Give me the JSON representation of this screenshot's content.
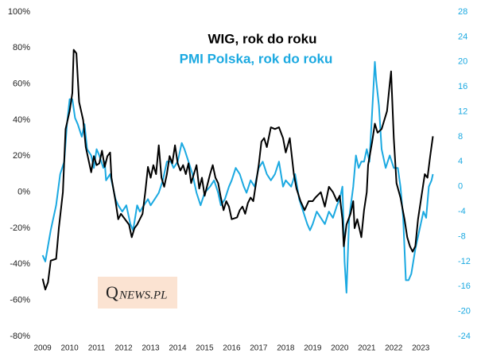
{
  "chart_data": {
    "type": "line",
    "logo_initial": "Q",
    "logo_rest": "NEWS.PL",
    "xlim": [
      2008.6,
      2024.2
    ],
    "xticks": [
      2009,
      2010,
      2011,
      2012,
      2013,
      2014,
      2015,
      2016,
      2017,
      2018,
      2019,
      2020,
      2021,
      2022,
      2023
    ],
    "ylim": [
      -80,
      100
    ],
    "yticks": [
      {
        "value": -80,
        "label": "-80%"
      },
      {
        "value": -60,
        "label": "-60%"
      },
      {
        "value": -40,
        "label": "-40%"
      },
      {
        "value": -20,
        "label": "-20%"
      },
      {
        "value": 0,
        "label": "0%"
      },
      {
        "value": 20,
        "label": "20%"
      },
      {
        "value": 40,
        "label": "40%"
      },
      {
        "value": 60,
        "label": "60%"
      },
      {
        "value": 80,
        "label": "80%"
      },
      {
        "value": 100,
        "label": "100%"
      }
    ],
    "y2lim": [
      -24,
      28
    ],
    "y2ticks": [
      -24,
      -20,
      -16,
      -12,
      -8,
      -4,
      0,
      4,
      8,
      12,
      16,
      20,
      24,
      28
    ],
    "series": [
      {
        "name": "WIG, rok do roku",
        "color": "#000000",
        "x": [
          2009.0,
          2009.1,
          2009.2,
          2009.3,
          2009.5,
          2009.6,
          2009.75,
          2009.85,
          2010.0,
          2010.1,
          2010.15,
          2010.25,
          2010.35,
          2010.5,
          2010.6,
          2010.7,
          2010.8,
          2010.9,
          2011.0,
          2011.1,
          2011.2,
          2011.3,
          2011.4,
          2011.5,
          2011.55,
          2011.7,
          2011.8,
          2011.9,
          2012.0,
          2012.2,
          2012.3,
          2012.4,
          2012.5,
          2012.6,
          2012.7,
          2012.8,
          2012.9,
          2013.0,
          2013.1,
          2013.2,
          2013.3,
          2013.4,
          2013.5,
          2013.6,
          2013.7,
          2013.8,
          2013.9,
          2014.0,
          2014.1,
          2014.2,
          2014.3,
          2014.4,
          2014.5,
          2014.6,
          2014.7,
          2014.8,
          2014.9,
          2015.0,
          2015.2,
          2015.3,
          2015.4,
          2015.5,
          2015.6,
          2015.7,
          2015.8,
          2015.9,
          2016.0,
          2016.2,
          2016.3,
          2016.4,
          2016.5,
          2016.6,
          2016.7,
          2016.8,
          2016.9,
          2017.0,
          2017.1,
          2017.2,
          2017.3,
          2017.45,
          2017.6,
          2017.75,
          2017.9,
          2018.0,
          2018.15,
          2018.3,
          2018.4,
          2018.55,
          2018.7,
          2018.85,
          2019.0,
          2019.1,
          2019.3,
          2019.45,
          2019.6,
          2019.75,
          2019.9,
          2020.0,
          2020.1,
          2020.15,
          2020.25,
          2020.4,
          2020.5,
          2020.55,
          2020.65,
          2020.8,
          2020.9,
          2021.0,
          2021.05,
          2021.2,
          2021.3,
          2021.4,
          2021.55,
          2021.75,
          2021.85,
          2021.9,
          2022.0,
          2022.1,
          2022.25,
          2022.4,
          2022.5,
          2022.6,
          2022.7,
          2022.8,
          2022.9,
          2023.0,
          2023.1,
          2023.15,
          2023.25,
          2023.35,
          2023.45
        ],
        "values": [
          -48,
          -54,
          -50,
          -38,
          -37,
          -20,
          0,
          35,
          45,
          55,
          79,
          77,
          50,
          40,
          25,
          18,
          11,
          20,
          15,
          16,
          23,
          14,
          20,
          22,
          8,
          -5,
          -15,
          -12,
          -14,
          -18,
          -25,
          -20,
          -18,
          -15,
          -12,
          0,
          14,
          8,
          15,
          10,
          26,
          8,
          3,
          10,
          20,
          16,
          26,
          16,
          12,
          15,
          10,
          16,
          5,
          10,
          15,
          2,
          8,
          -2,
          10,
          15,
          8,
          5,
          -3,
          -10,
          -5,
          -8,
          -15,
          -14,
          -10,
          -8,
          -12,
          -6,
          -3,
          -5,
          5,
          15,
          28,
          30,
          25,
          36,
          35,
          36,
          30,
          22,
          30,
          10,
          2,
          -5,
          -10,
          -5,
          -5,
          -3,
          0,
          -8,
          3,
          0,
          -5,
          -2,
          -15,
          -30,
          -18,
          -12,
          -5,
          -20,
          -15,
          -25,
          -10,
          0,
          15,
          28,
          38,
          33,
          35,
          45,
          60,
          67,
          30,
          5,
          -3,
          -15,
          -25,
          -30,
          -33,
          -30,
          -15,
          -5,
          5,
          10,
          8,
          20,
          31
        ]
      },
      {
        "name": "PMI Polska, rok do roku",
        "color": "#1ba9e1",
        "axis": "y2",
        "x": [
          2009.0,
          2009.1,
          2009.3,
          2009.5,
          2009.65,
          2009.8,
          2009.9,
          2010.0,
          2010.1,
          2010.2,
          2010.3,
          2010.45,
          2010.55,
          2010.65,
          2010.8,
          2010.9,
          2011.0,
          2011.1,
          2011.25,
          2011.3,
          2011.35,
          2011.5,
          2011.6,
          2011.7,
          2011.8,
          2011.95,
          2012.1,
          2012.25,
          2012.35,
          2012.5,
          2012.6,
          2012.75,
          2012.9,
          2013.0,
          2013.15,
          2013.3,
          2013.45,
          2013.6,
          2013.75,
          2013.85,
          2014.0,
          2014.15,
          2014.25,
          2014.4,
          2014.55,
          2014.7,
          2014.85,
          2015.0,
          2015.2,
          2015.35,
          2015.5,
          2015.6,
          2015.75,
          2015.9,
          2016.0,
          2016.15,
          2016.3,
          2016.45,
          2016.55,
          2016.7,
          2016.85,
          2017.0,
          2017.15,
          2017.3,
          2017.45,
          2017.6,
          2017.75,
          2017.9,
          2018.0,
          2018.2,
          2018.35,
          2018.5,
          2018.65,
          2018.8,
          2018.9,
          2019.0,
          2019.15,
          2019.3,
          2019.45,
          2019.6,
          2019.75,
          2019.9,
          2020.0,
          2020.1,
          2020.18,
          2020.25,
          2020.35,
          2020.5,
          2020.6,
          2020.7,
          2020.8,
          2020.9,
          2021.0,
          2021.1,
          2021.2,
          2021.3,
          2021.35,
          2021.45,
          2021.55,
          2021.7,
          2021.85,
          2022.0,
          2022.15,
          2022.25,
          2022.35,
          2022.45,
          2022.55,
          2022.65,
          2022.8,
          2022.9,
          2023.0,
          2023.1,
          2023.2,
          2023.3,
          2023.4,
          2023.45
        ],
        "values": [
          -11,
          -12,
          -7,
          -3,
          2,
          4,
          10,
          14,
          14,
          11,
          10,
          8,
          10,
          6,
          5,
          3,
          6,
          5,
          3,
          4,
          1,
          2,
          0,
          -2,
          -3,
          -4,
          -3,
          -6,
          -7,
          -3,
          -4,
          -3,
          -2,
          -3,
          -2,
          -1,
          1,
          4,
          4,
          3,
          4,
          7,
          6,
          4,
          2,
          -1,
          -3,
          -1,
          0,
          1,
          -1,
          -3,
          -2,
          0,
          1,
          3,
          2,
          0,
          -1,
          1,
          0,
          3,
          4,
          2,
          1,
          2,
          4,
          0,
          1,
          0,
          2,
          -2,
          -4,
          -6,
          -7,
          -6,
          -4,
          -5,
          -6,
          -4,
          -5,
          -3,
          -2,
          0,
          -12,
          -17,
          -5,
          0,
          5,
          3,
          4,
          4,
          6,
          4,
          12,
          20,
          17,
          13,
          6,
          3,
          5,
          3,
          3,
          0,
          -5,
          -15,
          -15,
          -14,
          -10,
          -8,
          -6,
          -4,
          -5,
          0,
          1,
          2
        ]
      }
    ]
  }
}
